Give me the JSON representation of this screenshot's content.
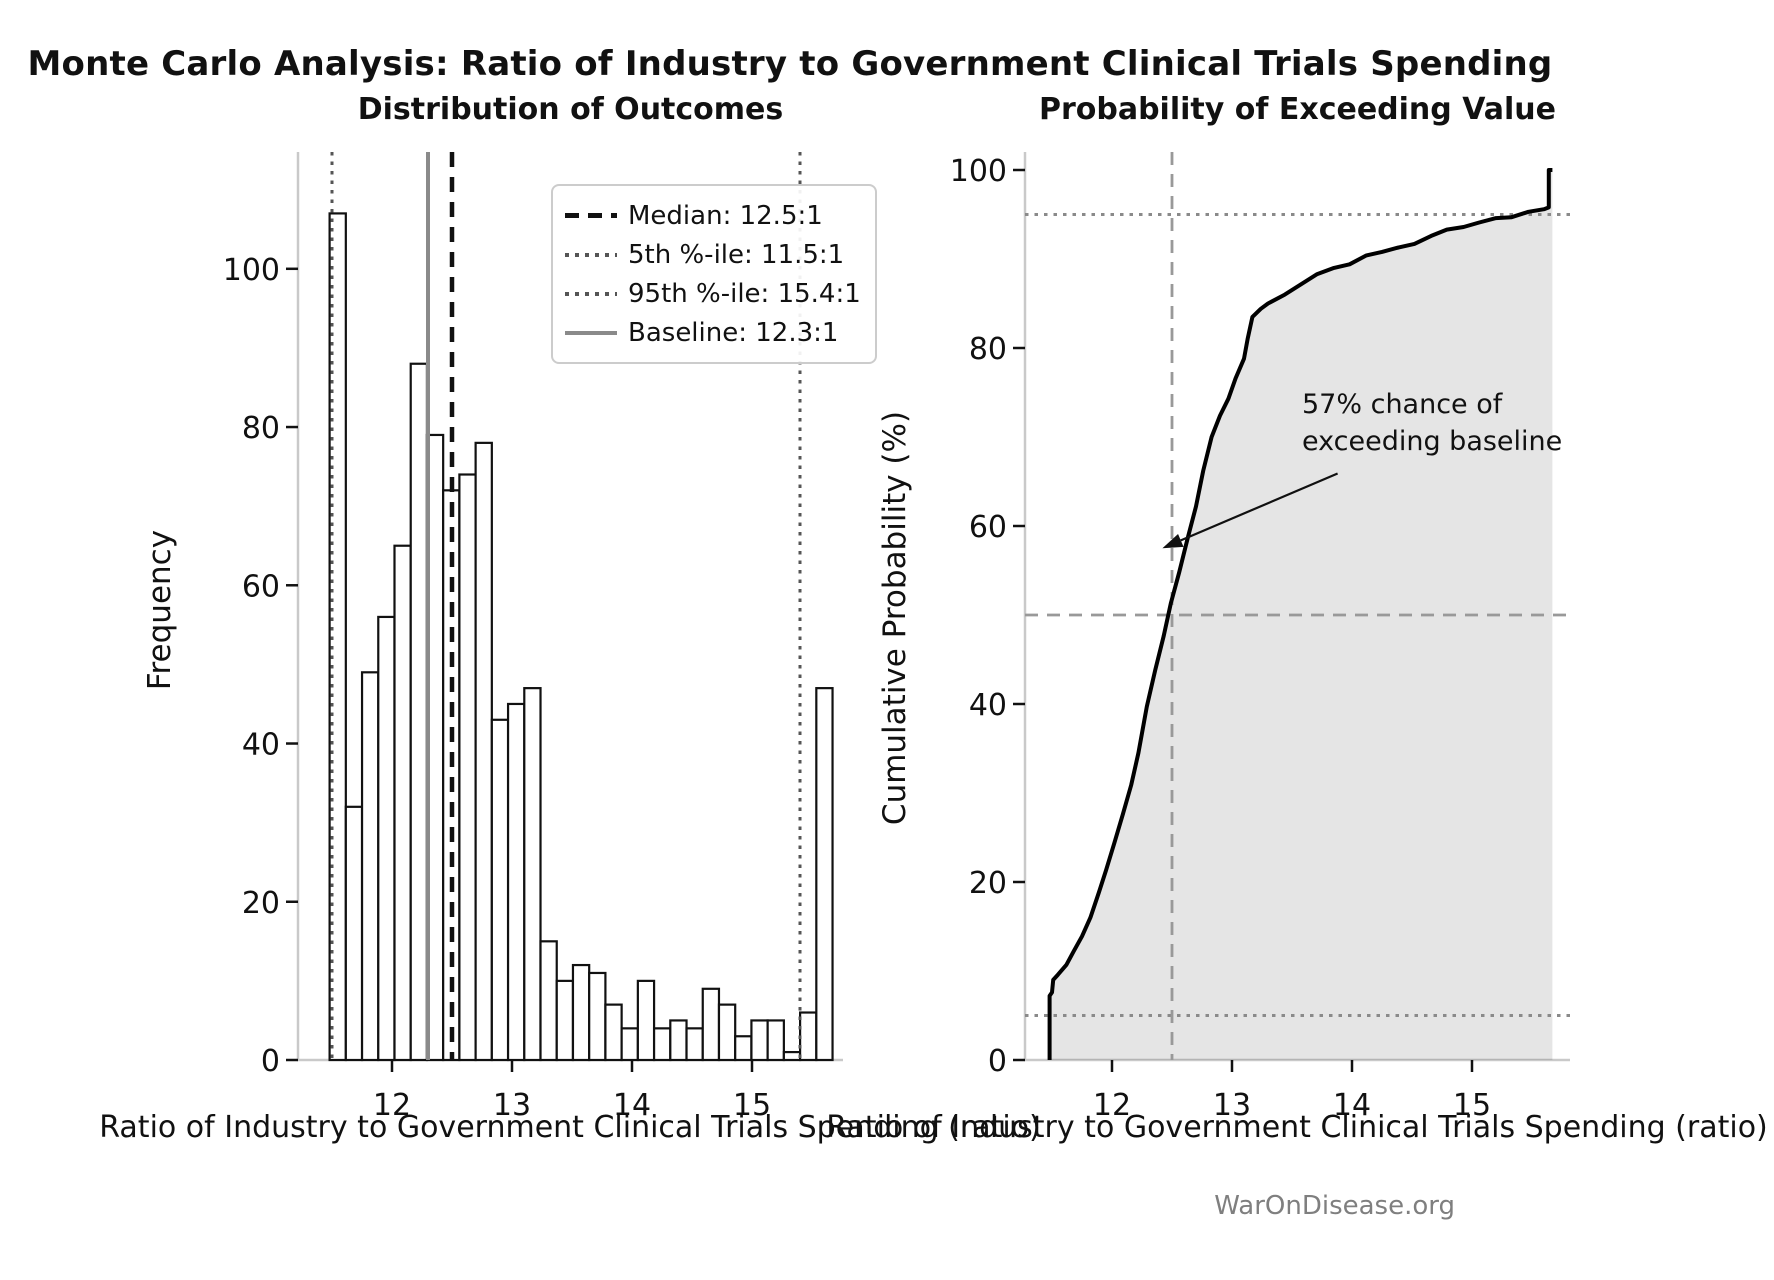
{
  "title": "Monte Carlo Analysis: Ratio of Industry to Government Clinical Trials Spending",
  "watermark": "WarOnDisease.org",
  "chart_data": [
    {
      "type": "bar",
      "subtype": "histogram",
      "title": "Distribution of Outcomes",
      "xlabel": "Ratio of Industry to Government Clinical Trials Spending (ratio)",
      "ylabel": "Frequency",
      "xlim": [
        11.22,
        15.82
      ],
      "ylim": [
        0,
        114.5
      ],
      "xticks": [
        12,
        13,
        14,
        15
      ],
      "yticks": [
        0,
        20,
        40,
        60,
        80,
        100
      ],
      "grid": false,
      "legend_position": "upper right",
      "bar_fill": "#ffffff",
      "bar_edge": "#111111",
      "bin_start": 11.48,
      "bin_width": 0.1352,
      "frequencies": [
        107,
        32,
        49,
        56,
        65,
        88,
        79,
        72,
        74,
        78,
        43,
        45,
        47,
        15,
        10,
        12,
        11,
        7,
        4,
        10,
        4,
        5,
        4,
        9,
        7,
        3,
        5,
        5,
        1,
        6,
        47
      ],
      "ref_lines": [
        {
          "id": "p5",
          "label": "5th %-ile: 11.5:1",
          "x": 11.5,
          "style": "dotted",
          "color": "#555555"
        },
        {
          "id": "p95",
          "label": "95th %-ile: 15.4:1",
          "x": 15.4,
          "style": "dotted",
          "color": "#555555"
        },
        {
          "id": "baseline",
          "label": "Baseline: 12.3:1",
          "x": 12.3,
          "style": "solid",
          "color": "#8a8a8a"
        },
        {
          "id": "median",
          "label": "Median: 12.5:1",
          "x": 12.5,
          "style": "dashed",
          "color": "#111111"
        }
      ],
      "legend_order": [
        "median",
        "p5",
        "p95",
        "baseline"
      ]
    },
    {
      "type": "area",
      "subtype": "ecdf",
      "title": "Probability of Exceeding Value",
      "xlabel": "Ratio of Industry to Government Clinical Trials Spending (ratio)",
      "ylabel": "Cumulative Probability (%)",
      "xlim": [
        11.27,
        15.82
      ],
      "ylim": [
        0,
        102
      ],
      "xticks": [
        12,
        13,
        14,
        15
      ],
      "yticks": [
        0,
        20,
        40,
        60,
        80,
        100
      ],
      "line_color": "#000000",
      "fill_color": "rgba(0,0,0,0.10)",
      "guides": {
        "v_dashed_x": 12.5,
        "h_dashed_y": 50,
        "h_dotted_y": [
          5,
          95
        ],
        "dash_color": "#999999",
        "dot_color": "#8a8a8a"
      },
      "annotation": {
        "line1": "57% chance of",
        "line2": "exceeding baseline",
        "arrow_tip": [
          12.42,
          57.5
        ],
        "arrow_tail": [
          13.88,
          65.9
        ]
      },
      "curve": [
        [
          11.48,
          0
        ],
        [
          11.48,
          7.2
        ],
        [
          11.5,
          7.6
        ],
        [
          11.51,
          9.0
        ],
        [
          11.55,
          9.6
        ],
        [
          11.62,
          10.7
        ],
        [
          11.68,
          12.2
        ],
        [
          11.75,
          13.9
        ],
        [
          11.82,
          16.0
        ],
        [
          11.89,
          18.8
        ],
        [
          11.95,
          21.3
        ],
        [
          12.02,
          24.4
        ],
        [
          12.09,
          27.6
        ],
        [
          12.16,
          30.9
        ],
        [
          12.22,
          34.5
        ],
        [
          12.29,
          39.7
        ],
        [
          12.36,
          43.8
        ],
        [
          12.43,
          47.6
        ],
        [
          12.49,
          51.3
        ],
        [
          12.56,
          54.8
        ],
        [
          12.63,
          58.6
        ],
        [
          12.7,
          62.2
        ],
        [
          12.76,
          66.2
        ],
        [
          12.83,
          70.0
        ],
        [
          12.9,
          72.4
        ],
        [
          12.97,
          74.3
        ],
        [
          13.03,
          76.6
        ],
        [
          13.1,
          78.8
        ],
        [
          13.13,
          81.0
        ],
        [
          13.17,
          83.5
        ],
        [
          13.24,
          84.4
        ],
        [
          13.3,
          85.0
        ],
        [
          13.44,
          86.0
        ],
        [
          13.58,
          87.2
        ],
        [
          13.71,
          88.3
        ],
        [
          13.85,
          89.0
        ],
        [
          13.98,
          89.4
        ],
        [
          14.12,
          90.4
        ],
        [
          14.25,
          90.8
        ],
        [
          14.39,
          91.3
        ],
        [
          14.52,
          91.7
        ],
        [
          14.66,
          92.6
        ],
        [
          14.79,
          93.3
        ],
        [
          14.93,
          93.6
        ],
        [
          15.06,
          94.1
        ],
        [
          15.2,
          94.6
        ],
        [
          15.33,
          94.7
        ],
        [
          15.47,
          95.3
        ],
        [
          15.6,
          95.6
        ],
        [
          15.64,
          95.8
        ],
        [
          15.64,
          100
        ],
        [
          15.67,
          100
        ]
      ]
    }
  ]
}
